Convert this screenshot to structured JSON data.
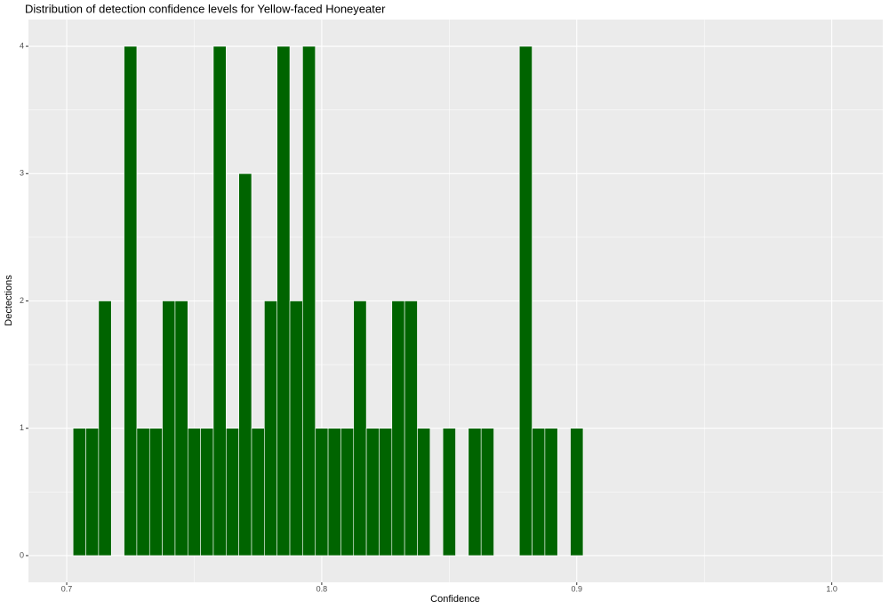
{
  "chart_data": {
    "type": "histogram",
    "title": "Distribution of detection confidence levels for Yellow-faced Honeyeater",
    "x_label": "Confidence",
    "y_label": "Dectections",
    "bins": [
      0.7025,
      0.7075,
      0.7125,
      0.7175,
      0.7225,
      0.7275,
      0.7325,
      0.7375,
      0.7425,
      0.7475,
      0.7525,
      0.7575,
      0.7625,
      0.7675,
      0.7725,
      0.7775,
      0.7825,
      0.7875,
      0.7925,
      0.7975,
      0.8025,
      0.8075,
      0.8125,
      0.8175,
      0.8225,
      0.8275,
      0.8325,
      0.8375,
      0.8425,
      0.8475,
      0.8525,
      0.8575,
      0.8625,
      0.8675,
      0.8725,
      0.8775,
      0.8825,
      0.8875,
      0.8925,
      0.8975,
      0.9025
    ],
    "values": [
      1,
      1,
      2,
      0,
      4,
      1,
      1,
      2,
      2,
      1,
      1,
      4,
      1,
      3,
      1,
      2,
      4,
      2,
      4,
      1,
      1,
      1,
      2,
      1,
      1,
      2,
      2,
      1,
      0,
      1,
      0,
      1,
      1,
      0,
      0,
      4,
      1,
      1,
      0,
      1
    ],
    "color": "#006400",
    "xlim": [
      0.685,
      1.02
    ],
    "xticks": [
      0.7,
      0.8,
      0.9,
      {
        "value": 1,
        "label": "1.0"
      }
    ],
    "ylim": [
      -0.21,
      4.21
    ],
    "yticks": [
      0,
      1,
      2,
      3,
      4
    ],
    "grid": true
  }
}
